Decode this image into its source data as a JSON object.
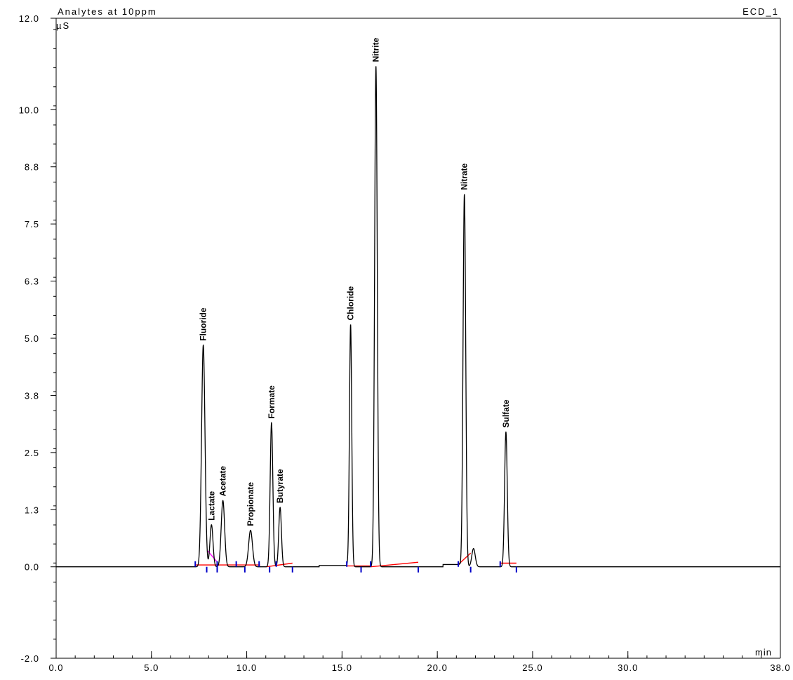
{
  "chart_data": {
    "type": "line",
    "title": "Analytes at 10ppm",
    "detector": "ECD_1",
    "xlabel": "min",
    "ylabel": "µS",
    "xlim": [
      0,
      38
    ],
    "ylim": [
      -2,
      12
    ],
    "x_ticks": [
      0,
      5,
      10,
      15,
      20,
      25,
      30,
      38
    ],
    "x_tick_labels": [
      "0.0",
      "5.0",
      "10.0",
      "15.0",
      "20.0",
      "25.0",
      "30.0",
      "38.0"
    ],
    "y_ticks": [
      -2,
      0,
      1.25,
      2.5,
      3.75,
      5,
      6.25,
      7.5,
      8.75,
      10,
      12
    ],
    "y_tick_labels": [
      "-2.0",
      "0.0",
      "1.3",
      "2.5",
      "3.8",
      "5.0",
      "6.3",
      "7.5",
      "8.8",
      "10.0",
      "12.0"
    ],
    "grid": false,
    "peaks": [
      {
        "name": "Fluoride",
        "rt": 7.72,
        "height": 4.85,
        "width": 0.09
      },
      {
        "name": "Lactate",
        "rt": 8.15,
        "height": 0.92,
        "width": 0.08
      },
      {
        "name": "Acetate",
        "rt": 8.75,
        "height": 1.45,
        "width": 0.09
      },
      {
        "name": "Propionate",
        "rt": 10.2,
        "height": 0.8,
        "width": 0.1
      },
      {
        "name": "Formate",
        "rt": 11.3,
        "height": 3.15,
        "width": 0.07
      },
      {
        "name": "Butyrate",
        "rt": 11.75,
        "height": 1.3,
        "width": 0.07
      },
      {
        "name": "Chloride",
        "rt": 15.45,
        "height": 5.3,
        "width": 0.06
      },
      {
        "name": "Nitrite",
        "rt": 16.78,
        "height": 10.95,
        "width": 0.07
      },
      {
        "name": "Nitrate",
        "rt": 21.42,
        "height": 8.15,
        "width": 0.07
      },
      {
        "name": "Sulfate",
        "rt": 23.6,
        "height": 2.95,
        "width": 0.07
      }
    ],
    "minor_peaks": [
      {
        "rt": 21.9,
        "height": 0.4,
        "width": 0.09
      }
    ],
    "baseline_segments": [
      {
        "x": [
          7.3,
          8.5
        ],
        "y": [
          0.04,
          0.04
        ],
        "color": "#ff0000"
      },
      {
        "x": [
          7.95,
          8.42
        ],
        "y": [
          0.35,
          0.12
        ],
        "color": "#ff00ff"
      },
      {
        "x": [
          8.5,
          9.9
        ],
        "y": [
          0.04,
          0.04
        ],
        "color": "#ff0000"
      },
      {
        "x": [
          9.9,
          10.7
        ],
        "y": [
          0.04,
          0.04
        ],
        "color": "#ff0000"
      },
      {
        "x": [
          11.0,
          12.4
        ],
        "y": [
          0.0,
          0.08
        ],
        "color": "#ff0000"
      },
      {
        "x": [
          15.25,
          16.5
        ],
        "y": [
          0.02,
          0.02
        ],
        "color": "#ff0000"
      },
      {
        "x": [
          16.5,
          19.0
        ],
        "y": [
          0.0,
          0.1
        ],
        "color": "#ff0000"
      },
      {
        "x": [
          21.1,
          21.75
        ],
        "y": [
          0.05,
          0.3
        ],
        "color": "#ff0000"
      },
      {
        "x": [
          23.3,
          24.15
        ],
        "y": [
          0.08,
          0.08
        ],
        "color": "#ff0000"
      }
    ],
    "integration_marks": [
      7.3,
      7.9,
      8.45,
      8.45,
      9.45,
      9.9,
      10.65,
      11.2,
      11.55,
      12.4,
      15.25,
      16.0,
      16.5,
      19.0,
      21.1,
      21.75,
      23.3,
      24.15
    ],
    "colors": {
      "trace": "#000000",
      "baseline": "#ff0000",
      "drop_baseline": "#ff00ff",
      "marks": "#0000c8"
    }
  }
}
